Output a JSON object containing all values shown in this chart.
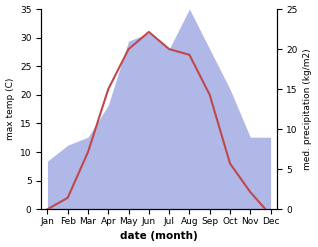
{
  "months": [
    "Jan",
    "Feb",
    "Mar",
    "Apr",
    "May",
    "Jun",
    "Jul",
    "Aug",
    "Sep",
    "Oct",
    "Nov",
    "Dec"
  ],
  "temperature": [
    0,
    2,
    10,
    21,
    28,
    31,
    28,
    27,
    20,
    8,
    3,
    -1
  ],
  "precipitation": [
    6,
    8,
    9,
    13,
    21,
    22,
    20,
    25,
    20,
    15,
    9,
    9
  ],
  "temp_color": "#c0474a",
  "precip_color_fill": "#b0b8e8",
  "xlabel": "date (month)",
  "ylabel_left": "max temp (C)",
  "ylabel_right": "med. precipitation (kg/m2)",
  "ylim_left": [
    0,
    35
  ],
  "ylim_right": [
    0,
    25
  ],
  "yticks_left": [
    0,
    5,
    10,
    15,
    20,
    25,
    30,
    35
  ],
  "yticks_right": [
    0,
    5,
    10,
    15,
    20,
    25
  ]
}
